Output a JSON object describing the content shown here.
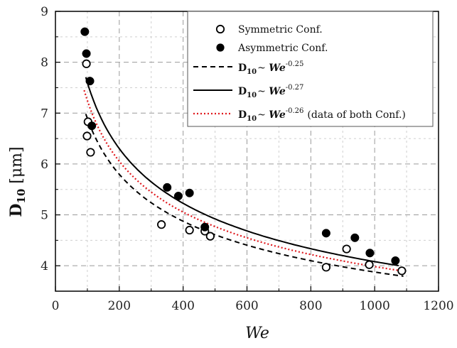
{
  "chart_data": {
    "type": "scatter",
    "title": "",
    "xlabel": "We",
    "ylabel": {
      "main": "D",
      "sub": "10",
      "unit": " [μm]"
    },
    "xlim": [
      0,
      1200
    ],
    "ylim": [
      3.5,
      9
    ],
    "xticks": [
      0,
      200,
      400,
      600,
      800,
      1000,
      1200
    ],
    "yticks": [
      4,
      5,
      6,
      7,
      8,
      9
    ],
    "grid": true,
    "legend_position": "top-right",
    "series": [
      {
        "name": "Symmetric Conf.",
        "kind": "markers",
        "marker": "open-circle",
        "color": "#000000",
        "x": [
          97,
          99,
          102,
          110,
          332,
          420,
          468,
          485,
          848,
          912,
          983,
          1085
        ],
        "y": [
          7.97,
          6.55,
          6.83,
          6.23,
          4.81,
          4.7,
          4.68,
          4.58,
          3.97,
          4.33,
          4.02,
          3.9
        ]
      },
      {
        "name": "Asymmetric Conf.",
        "kind": "markers",
        "marker": "filled-circle",
        "color": "#000000",
        "x": [
          92,
          97,
          108,
          114,
          350,
          385,
          420,
          468,
          848,
          938,
          985,
          1065
        ],
        "y": [
          8.6,
          8.17,
          7.63,
          6.75,
          5.54,
          5.37,
          5.43,
          4.76,
          4.64,
          4.55,
          4.25,
          4.1
        ]
      },
      {
        "name": "~ We",
        "kind": "fit",
        "label_prefix": "D",
        "label_sub": "10",
        "label_var": "We",
        "exponent": "-0.25",
        "coef": 21.8,
        "exp_value": -0.25,
        "x_range": [
          95,
          1090
        ],
        "line_style": "dashed",
        "color": "#000000"
      },
      {
        "name": "~ We",
        "kind": "fit",
        "label_prefix": "D",
        "label_sub": "10",
        "label_var": "We",
        "exponent": "-0.27",
        "coef": 26.35,
        "exp_value": -0.27,
        "x_range": [
          95,
          1075
        ],
        "line_style": "solid",
        "color": "#000000"
      },
      {
        "name": "~ We",
        "kind": "fit",
        "label_prefix": "D",
        "label_sub": "10",
        "label_var": "We",
        "exponent": "-0.26",
        "label_suffix": "(data of both Conf.)",
        "coef": 24.0,
        "exp_value": -0.26,
        "x_range": [
          90,
          1080
        ],
        "line_style": "dotted",
        "color": "#e0191e"
      }
    ]
  }
}
